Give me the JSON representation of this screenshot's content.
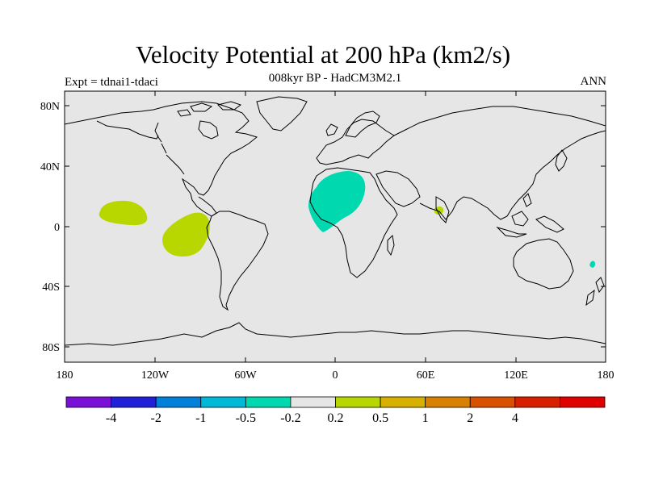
{
  "header": {
    "title": "Velocity Potential at 200 hPa (km2/s)",
    "subtitle": "008kyr BP - HadCM3M2.1",
    "left_label": "Expt = tdnai1-tdaci",
    "right_label": "ANN"
  },
  "map": {
    "lat_ticks": [
      "80N",
      "40N",
      "0",
      "40S",
      "80S"
    ],
    "lon_ticks": [
      "180",
      "120W",
      "60W",
      "0",
      "60E",
      "120E",
      "180"
    ],
    "background_color": "#e6e6e6",
    "regions": [
      {
        "name": "central-pacific-positive",
        "level": "0.2 to 0.5",
        "color": "#b8d600"
      },
      {
        "name": "east-pacific-positive",
        "level": "0.2 to 0.5",
        "color": "#b8d600"
      },
      {
        "name": "africa-negative",
        "level": "-0.5 to -0.2",
        "color": "#00d8b0"
      },
      {
        "name": "arabian-sea-positive",
        "level": "0.2 to 0.5",
        "color": "#b8d600"
      },
      {
        "name": "southwest-pacific-negative",
        "level": "-0.5 to -0.2",
        "color": "#00d8b0"
      }
    ]
  },
  "colorbar": {
    "colors": [
      "#7a10d8",
      "#2020d8",
      "#0080d8",
      "#00b8d8",
      "#00d8b0",
      "#e6e6e6",
      "#b8d600",
      "#d8b000",
      "#d88000",
      "#d85000",
      "#d82000",
      "#e00000"
    ],
    "labels": [
      "-4",
      "-2",
      "-1",
      "-0.5",
      "-0.2",
      "0.2",
      "0.5",
      "1",
      "2",
      "4"
    ]
  }
}
